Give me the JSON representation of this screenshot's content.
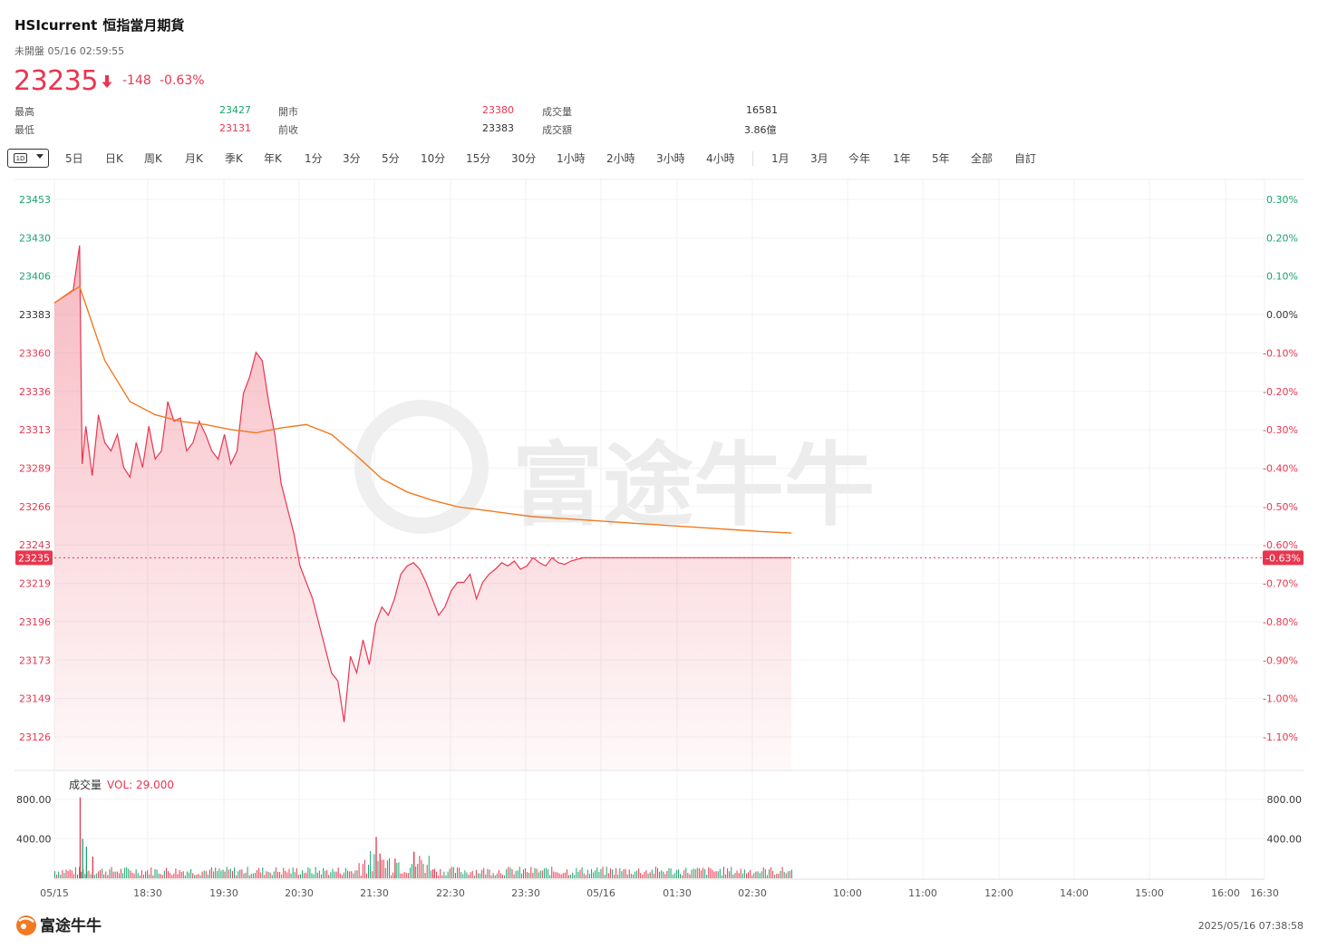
{
  "header": {
    "symbol": "HSIcurrent",
    "name": "恒指當月期貨",
    "status": "未開盤 05/16 02:59:55",
    "price": "23235",
    "change": "-148",
    "change_pct": "-0.63%"
  },
  "stats": [
    {
      "label": "最高",
      "value": "23427",
      "tone": "up"
    },
    {
      "label": "開市",
      "value": "23380",
      "tone": "dn"
    },
    {
      "label": "成交量",
      "value": "16581",
      "tone": "neu"
    },
    {
      "label": "最低",
      "value": "23131",
      "tone": "dn"
    },
    {
      "label": "前收",
      "value": "23383",
      "tone": "neu"
    },
    {
      "label": "成交額",
      "value": "3.86億",
      "tone": "neu"
    }
  ],
  "toolbar": {
    "selected_badge": "1D",
    "periods_a": [
      "5日",
      "日K",
      "周K",
      "月K",
      "季K",
      "年K",
      "1分",
      "3分",
      "5分",
      "10分",
      "15分",
      "30分",
      "1小時",
      "2小時",
      "3小時",
      "4小時"
    ],
    "periods_b": [
      "1月",
      "3月",
      "今年",
      "1年",
      "5年",
      "全部",
      "自訂"
    ]
  },
  "watermark": "富途牛牛",
  "colors": {
    "up": "#1aa36d",
    "down": "#e8364f",
    "avg_line": "#f07a22",
    "price_line": "#e8364f"
  },
  "chart_data": {
    "type": "line",
    "y_ticks_left": [
      "23453",
      "23430",
      "23406",
      "23383",
      "23360",
      "23336",
      "23313",
      "23289",
      "23266",
      "23243",
      "23219",
      "23196",
      "23173",
      "23149",
      "23126"
    ],
    "y_ticks_right": [
      "0.30%",
      "0.20%",
      "0.10%",
      "0.00%",
      "-0.10%",
      "-0.20%",
      "-0.30%",
      "-0.40%",
      "-0.50%",
      "-0.60%",
      "-0.70%",
      "-0.80%",
      "-0.90%",
      "-1.00%",
      "-1.10%"
    ],
    "ylim": [
      23126,
      23453
    ],
    "prev_close": 23383,
    "current_label_left": "23235",
    "current_label_right": "-0.63%",
    "x_ticks": [
      "05/15",
      "18:30",
      "19:30",
      "20:30",
      "21:30",
      "22:30",
      "23:30",
      "05/16",
      "01:30",
      "02:30",
      "10:00",
      "11:00",
      "12:00",
      "14:00",
      "15:00",
      "16:00",
      "16:30"
    ],
    "series": [
      {
        "name": "price",
        "x_minutes": [
          0,
          15,
          20,
          22,
          25,
          30,
          35,
          40,
          45,
          50,
          55,
          60,
          65,
          70,
          75,
          80,
          85,
          90,
          95,
          100,
          105,
          110,
          115,
          120,
          125,
          130,
          135,
          140,
          145,
          150,
          155,
          160,
          165,
          170,
          175,
          180,
          185,
          190,
          195,
          200,
          205,
          210,
          215,
          220,
          225,
          230,
          235,
          240,
          245,
          250,
          255,
          260,
          265,
          270,
          275,
          280,
          285,
          290,
          295,
          300,
          305,
          310,
          315,
          320,
          325,
          330,
          335,
          340,
          345,
          350,
          355,
          360,
          365,
          370,
          375,
          380,
          385,
          390,
          395,
          400,
          405,
          410,
          415,
          420,
          425,
          430,
          435,
          440,
          445,
          450,
          455,
          460,
          465,
          470,
          475,
          480,
          485,
          490,
          495,
          500,
          505,
          510,
          515,
          520,
          525,
          530,
          535,
          540,
          545,
          550,
          555,
          560,
          565,
          570,
          575,
          580,
          585
        ],
        "values": [
          23390,
          23398,
          23425,
          23292,
          23315,
          23285,
          23322,
          23305,
          23300,
          23310,
          23290,
          23284,
          23305,
          23290,
          23315,
          23295,
          23300,
          23330,
          23318,
          23320,
          23300,
          23305,
          23318,
          23310,
          23300,
          23295,
          23310,
          23292,
          23300,
          23335,
          23345,
          23360,
          23355,
          23330,
          23310,
          23280,
          23265,
          23250,
          23230,
          23220,
          23210,
          23195,
          23180,
          23165,
          23160,
          23135,
          23175,
          23165,
          23185,
          23170,
          23195,
          23205,
          23200,
          23210,
          23225,
          23230,
          23232,
          23228,
          23220,
          23210,
          23200,
          23205,
          23215,
          23220,
          23220,
          23225,
          23210,
          23220,
          23225,
          23228,
          23232,
          23230,
          23233,
          23228,
          23230,
          23235,
          23232,
          23230,
          23235,
          23232,
          23231,
          23233,
          23234,
          23235,
          23235,
          23235,
          23235,
          23235,
          23235,
          23235,
          23235,
          23235,
          23235,
          23235,
          23235,
          23235,
          23235,
          23235,
          23235,
          23235,
          23235,
          23235,
          23235,
          23235,
          23235,
          23235,
          23235,
          23235,
          23235,
          23235,
          23235,
          23235,
          23235,
          23235,
          23235,
          23235,
          23235
        ]
      },
      {
        "name": "average",
        "x_minutes": [
          0,
          20,
          40,
          60,
          80,
          100,
          120,
          140,
          160,
          180,
          200,
          220,
          240,
          260,
          280,
          300,
          320,
          340,
          360,
          380,
          400,
          420,
          440,
          460,
          480,
          500,
          520,
          540,
          560,
          585
        ],
        "values": [
          23390,
          23400,
          23355,
          23330,
          23322,
          23318,
          23316,
          23313,
          23311,
          23314,
          23316,
          23310,
          23297,
          23283,
          23275,
          23270,
          23266,
          23264,
          23262,
          23260,
          23259,
          23258,
          23257,
          23256,
          23255,
          23254,
          23253,
          23252,
          23251,
          23250
        ]
      }
    ],
    "volume": {
      "title": "成交量",
      "vol_label": "VOL: 29.000",
      "y_ticks": [
        "800.00",
        "400.00"
      ],
      "ylim": [
        0,
        1000
      ],
      "spikes": [
        [
          20,
          820,
          "dn"
        ],
        [
          22,
          400,
          "up"
        ],
        [
          25,
          320,
          "up"
        ],
        [
          30,
          220,
          "dn"
        ],
        [
          255,
          420,
          "dn"
        ],
        [
          258,
          250,
          "dn"
        ],
        [
          270,
          200,
          "dn"
        ],
        [
          285,
          270,
          "dn"
        ],
        [
          300,
          90,
          "dn"
        ]
      ]
    }
  },
  "footer": {
    "logo_text": "富途牛牛",
    "timestamp": "2025/05/16 07:38:58"
  }
}
